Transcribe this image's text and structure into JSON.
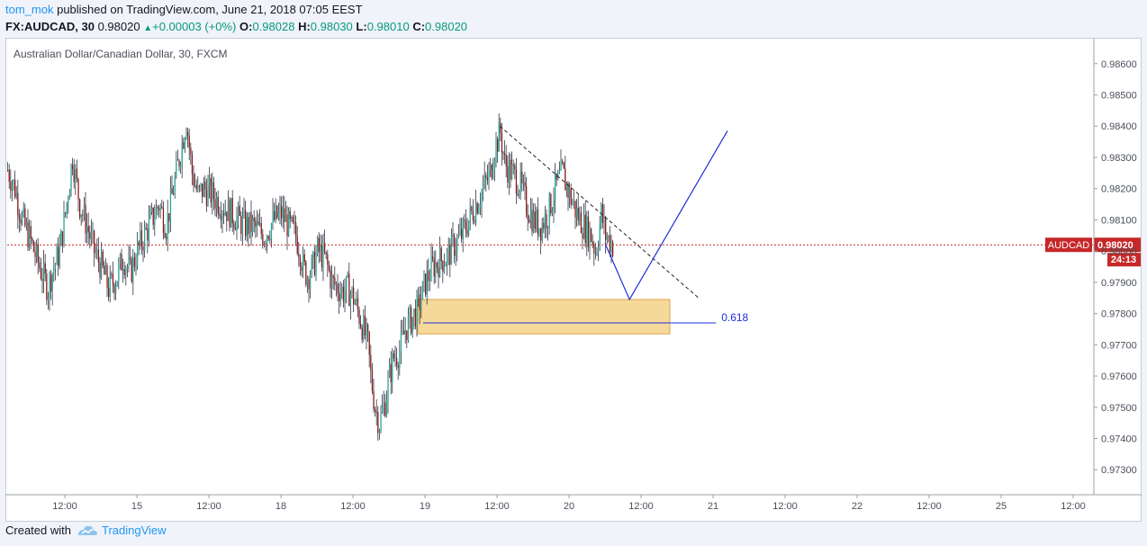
{
  "header": {
    "author": "tom_mok",
    "published_text": "published on TradingView.com, June 21, 2018 07:05 EEST",
    "symbol_line": "FX:AUDCAD, 30",
    "last": "0.98020",
    "change": "+0.00003 (+0%)",
    "o_label": "O:",
    "o_value": "0.98028",
    "h_label": "H:",
    "h_value": "0.98030",
    "l_label": "L:",
    "l_value": "0.98010",
    "c_label": "C:",
    "c_value": "0.98020"
  },
  "footer": {
    "created_with": "Created with",
    "brand": "TradingView"
  },
  "colors": {
    "up": "#26a69a",
    "down": "#8b1a1a",
    "price_line": "#c62828",
    "zone": "#f5d99a",
    "drawing": "#1e2fd6"
  },
  "chart_data": {
    "type": "candlestick",
    "title": "Australian Dollar/Canadian Dollar, 30, FXCM",
    "ylim": [
      0.9722,
      0.9868
    ],
    "y_ticks": [
      "0.98600",
      "0.98500",
      "0.98400",
      "0.98300",
      "0.98200",
      "0.98100",
      "0.98000",
      "0.97900",
      "0.97800",
      "0.97700",
      "0.97600",
      "0.97500",
      "0.97400",
      "0.97300"
    ],
    "x_ticks": [
      "12:00",
      "15",
      "12:00",
      "18",
      "12:00",
      "19",
      "12:00",
      "20",
      "12:00",
      "21",
      "12:00",
      "22",
      "12:00",
      "25",
      "12:00"
    ],
    "current_price": {
      "symbol": "AUDCAD",
      "value": "0.98020",
      "countdown": "24:13"
    },
    "path": [
      [
        0,
        0.9826
      ],
      [
        5,
        0.982
      ],
      [
        10,
        0.981
      ],
      [
        16,
        0.9803
      ],
      [
        22,
        0.9795
      ],
      [
        28,
        0.9788
      ],
      [
        30,
        0.9792
      ],
      [
        36,
        0.98
      ],
      [
        40,
        0.9812
      ],
      [
        45,
        0.983
      ],
      [
        50,
        0.9815
      ],
      [
        55,
        0.9808
      ],
      [
        60,
        0.98
      ],
      [
        65,
        0.9795
      ],
      [
        70,
        0.9788
      ],
      [
        76,
        0.9792
      ],
      [
        80,
        0.9798
      ],
      [
        85,
        0.9793
      ],
      [
        90,
        0.98
      ],
      [
        95,
        0.9805
      ],
      [
        100,
        0.981
      ],
      [
        105,
        0.9815
      ],
      [
        110,
        0.9808
      ],
      [
        115,
        0.982
      ],
      [
        120,
        0.9832
      ],
      [
        124,
        0.9842
      ],
      [
        128,
        0.9825
      ],
      [
        132,
        0.9818
      ],
      [
        136,
        0.982
      ],
      [
        142,
        0.9818
      ],
      [
        148,
        0.9815
      ],
      [
        155,
        0.9812
      ],
      [
        160,
        0.981
      ],
      [
        165,
        0.9808
      ],
      [
        170,
        0.9808
      ],
      [
        178,
        0.9805
      ],
      [
        185,
        0.981
      ],
      [
        190,
        0.9812
      ],
      [
        195,
        0.9808
      ],
      [
        200,
        0.9805
      ],
      [
        203,
        0.98
      ],
      [
        205,
        0.9795
      ],
      [
        208,
        0.9792
      ],
      [
        212,
        0.9795
      ],
      [
        215,
        0.98
      ],
      [
        220,
        0.9798
      ],
      [
        225,
        0.979
      ],
      [
        230,
        0.9788
      ],
      [
        233,
        0.9787
      ],
      [
        236,
        0.9788
      ],
      [
        240,
        0.9785
      ],
      [
        245,
        0.9778
      ],
      [
        250,
        0.977
      ],
      [
        252,
        0.976
      ],
      [
        255,
        0.975
      ],
      [
        258,
        0.9745
      ],
      [
        262,
        0.9752
      ],
      [
        265,
        0.976
      ],
      [
        268,
        0.9766
      ],
      [
        272,
        0.9768
      ],
      [
        276,
        0.9775
      ],
      [
        280,
        0.9778
      ],
      [
        285,
        0.9782
      ],
      [
        290,
        0.979
      ],
      [
        295,
        0.9795
      ],
      [
        300,
        0.9797
      ],
      [
        305,
        0.9798
      ],
      [
        310,
        0.9802
      ],
      [
        315,
        0.9805
      ],
      [
        320,
        0.981
      ],
      [
        325,
        0.9815
      ],
      [
        330,
        0.982
      ],
      [
        335,
        0.9825
      ],
      [
        338,
        0.9833
      ],
      [
        342,
        0.9838
      ],
      [
        345,
        0.9828
      ],
      [
        350,
        0.9825
      ],
      [
        355,
        0.9822
      ],
      [
        360,
        0.9815
      ],
      [
        365,
        0.981
      ],
      [
        370,
        0.9808
      ],
      [
        375,
        0.9812
      ],
      [
        380,
        0.982
      ],
      [
        385,
        0.9825
      ],
      [
        390,
        0.9818
      ],
      [
        395,
        0.9812
      ],
      [
        400,
        0.9808
      ],
      [
        405,
        0.9805
      ],
      [
        408,
        0.98
      ],
      [
        410,
        0.9805
      ],
      [
        412,
        0.9812
      ],
      [
        415,
        0.9805
      ],
      [
        420,
        0.9802
      ]
    ],
    "annotations": {
      "fib_label": "0.618",
      "fib_level": 0.9777,
      "zone": {
        "top": 0.97845,
        "bottom": 0.97735,
        "x_start_bar": 285,
        "x_end_bar": 460
      },
      "fib_line_end_bar": 492,
      "trendline": [
        [
          342,
          0.984
        ],
        [
          480,
          0.9785
        ]
      ],
      "projection": [
        [
          415,
          0.98025
        ],
        [
          432,
          0.97845
        ],
        [
          500,
          0.98385
        ]
      ]
    }
  }
}
